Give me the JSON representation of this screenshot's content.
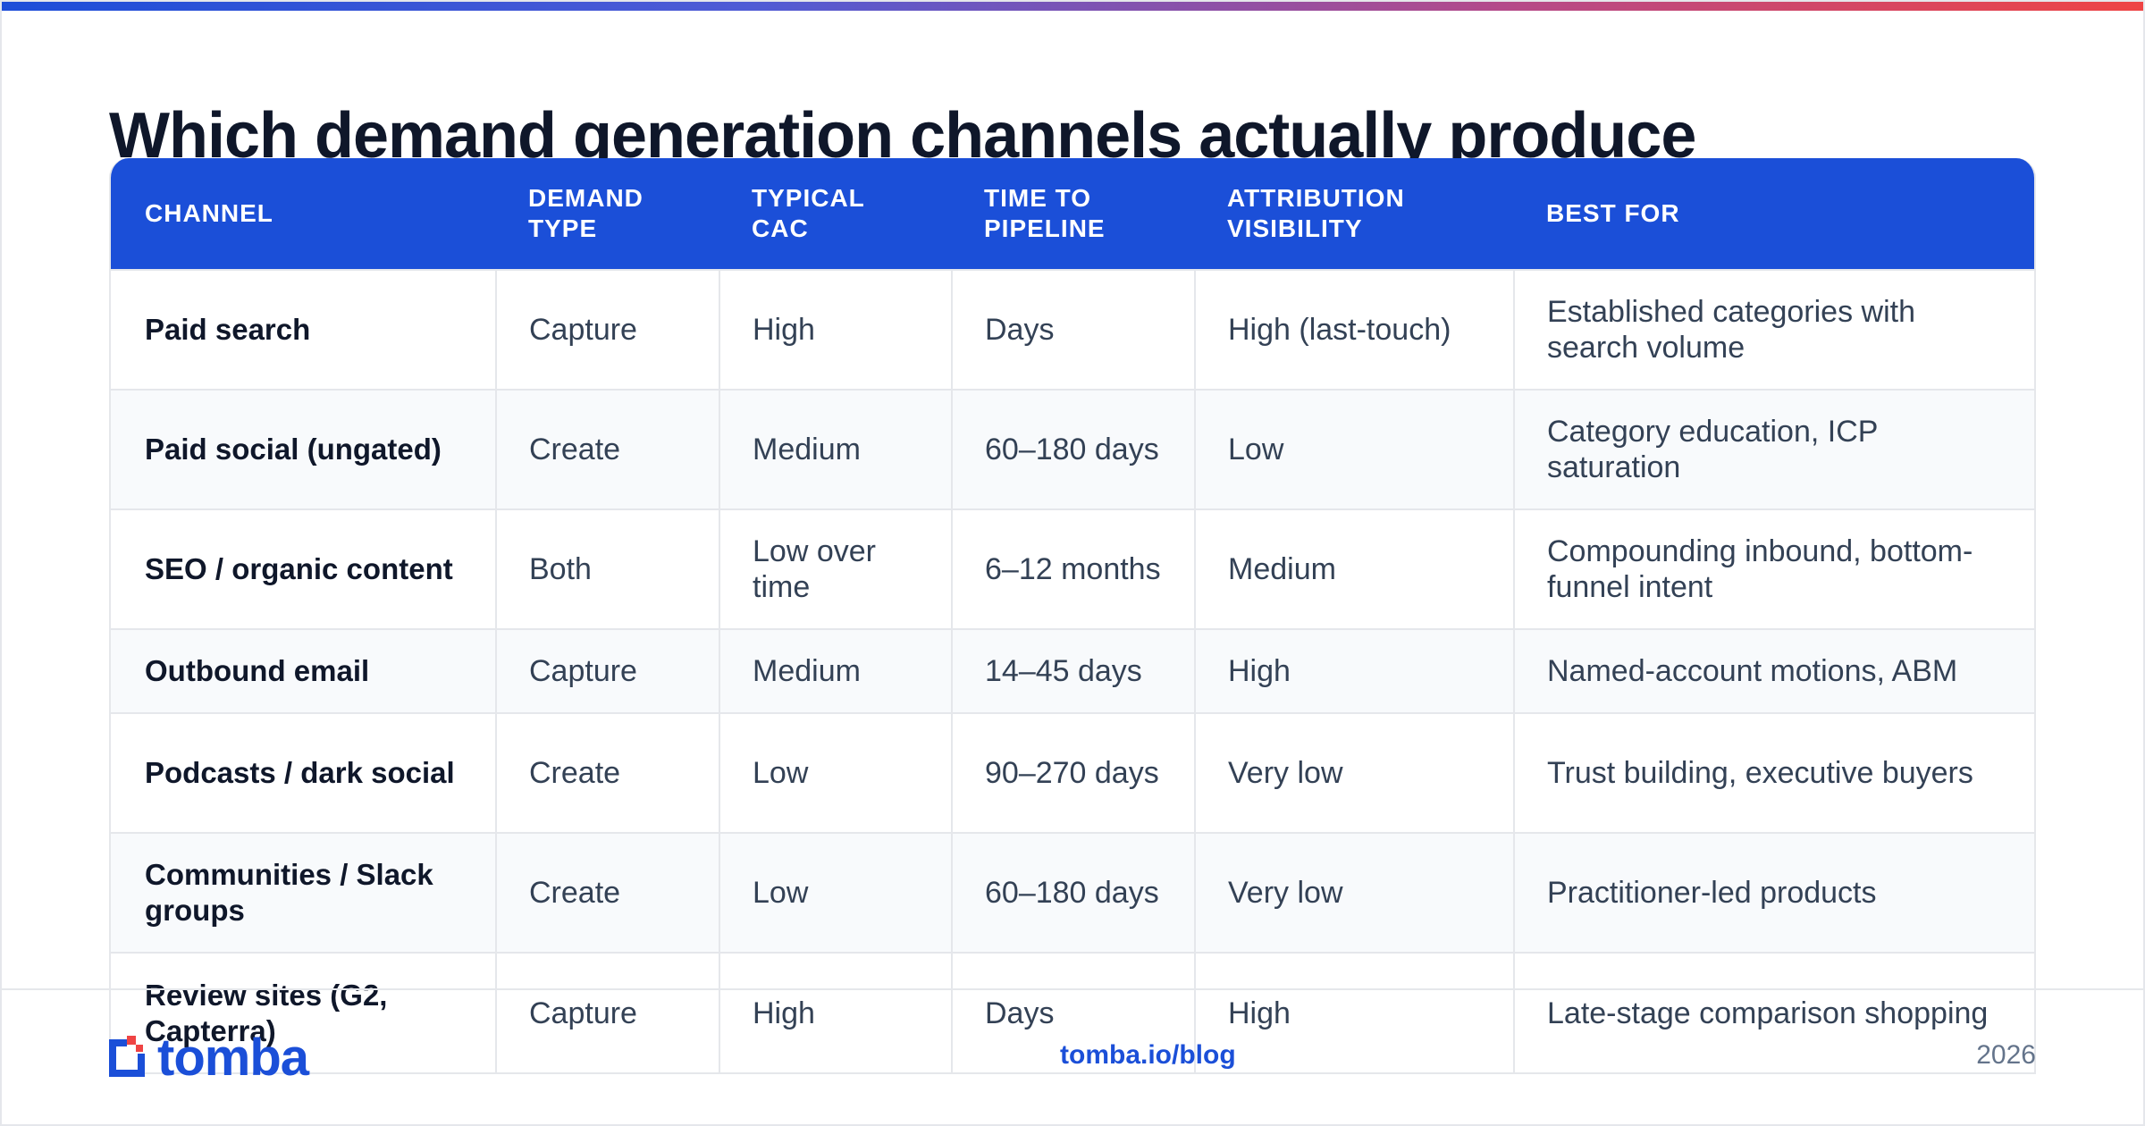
{
  "title": "Which demand generation channels actually produce",
  "table": {
    "headers": [
      [
        "CHANNEL"
      ],
      [
        "DEMAND",
        "TYPE"
      ],
      [
        "TYPICAL",
        "CAC"
      ],
      [
        "TIME TO",
        "PIPELINE"
      ],
      [
        "ATTRIBUTION",
        "VISIBILITY"
      ],
      [
        "BEST FOR"
      ]
    ],
    "rows": [
      [
        "Paid search",
        "Capture",
        "High",
        "Days",
        "High (last-touch)",
        "Established categories with search volume"
      ],
      [
        "Paid social (ungated)",
        "Create",
        "Medium",
        "60–180 days",
        "Low",
        "Category education, ICP saturation"
      ],
      [
        "SEO / organic content",
        "Both",
        "Low over time",
        "6–12 months",
        "Medium",
        "Compounding inbound, bottom-funnel intent"
      ],
      [
        "Outbound email",
        "Capture",
        "Medium",
        "14–45 days",
        "High",
        "Named-account motions, ABM"
      ],
      [
        "Podcasts / dark social",
        "Create",
        "Low",
        "90–270 days",
        "Very low",
        "Trust building, executive buyers"
      ],
      [
        "Communities / Slack groups",
        "Create",
        "Low",
        "60–180 days",
        "Very low",
        "Practitioner-led products"
      ],
      [
        "Review sites (G2, Capterra)",
        "Capture",
        "High",
        "Days",
        "High",
        "Late-stage comparison shopping"
      ]
    ]
  },
  "footer": {
    "logo_text": "tomba",
    "link": "tomba.io/blog",
    "year": "2026"
  },
  "colors": {
    "brand": "#1b4fd8",
    "accent_red": "#ef4444",
    "text_dark": "#0f172a",
    "text_body": "#334155"
  }
}
